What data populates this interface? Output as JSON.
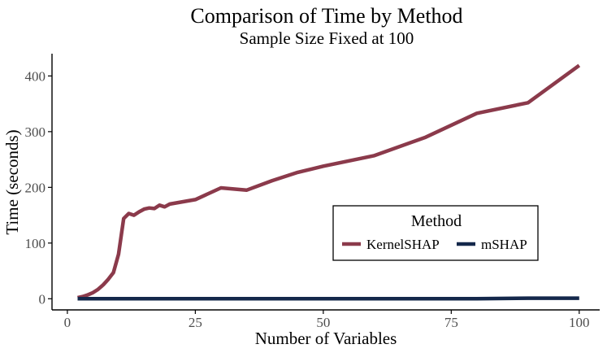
{
  "chart_data": {
    "type": "line",
    "title": "Comparison of Time by Method",
    "subtitle": "Sample Size Fixed at 100",
    "xlabel": "Number of Variables",
    "ylabel": "Time (seconds)",
    "xlim": [
      -3,
      104
    ],
    "ylim": [
      -20,
      440
    ],
    "xticks": [
      0,
      25,
      50,
      75,
      100
    ],
    "yticks": [
      0,
      100,
      200,
      300,
      400
    ],
    "grid": false,
    "legend": {
      "title": "Method",
      "placement": "bottom-right"
    },
    "series": [
      {
        "name": "KernelSHAP",
        "color": "#8b3a4b",
        "x": [
          2,
          3,
          4,
          5,
          6,
          7,
          8,
          9,
          10,
          11,
          12,
          13,
          14,
          15,
          16,
          17,
          18,
          19,
          20,
          25,
          30,
          35,
          40,
          45,
          50,
          60,
          70,
          80,
          90,
          100
        ],
        "y": [
          2,
          4,
          7,
          11,
          17,
          25,
          35,
          47,
          80,
          144,
          153,
          150,
          156,
          161,
          163,
          162,
          168,
          165,
          170,
          178,
          199,
          195,
          212,
          227,
          238,
          257,
          290,
          333,
          352,
          419
        ]
      },
      {
        "name": "mSHAP",
        "color": "#14284b",
        "x": [
          2,
          10,
          20,
          30,
          40,
          50,
          60,
          70,
          80,
          90,
          100
        ],
        "y": [
          0,
          0,
          0,
          0,
          0,
          0,
          0,
          0,
          0,
          1,
          1
        ]
      }
    ]
  }
}
